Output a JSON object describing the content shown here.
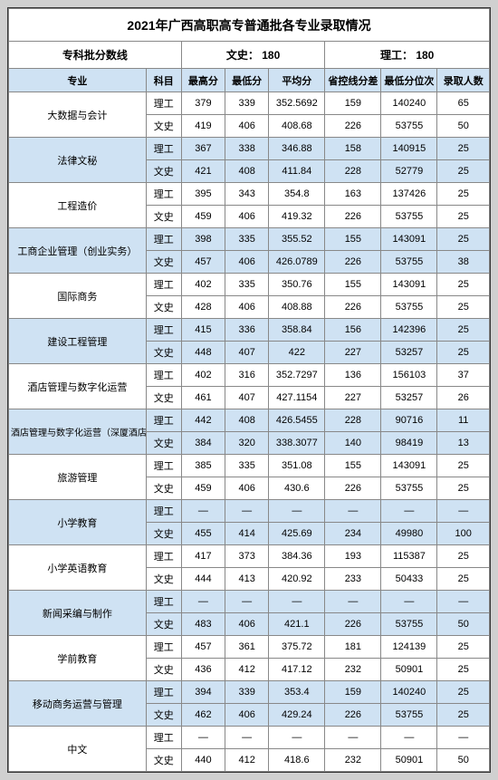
{
  "title": "2021年广西高职高专普通批各专业录取情况",
  "batch_label": "专科批分数线",
  "wenshi_label": "文史：",
  "wenshi_score": "180",
  "ligong_label": "理工：",
  "ligong_score": "180",
  "headers": [
    "专业",
    "科目",
    "最高分",
    "最低分",
    "平均分",
    "省控线分差",
    "最低分位次",
    "录取人数"
  ],
  "col_widths": [
    "132",
    "34",
    "42",
    "42",
    "54",
    "54",
    "54",
    "50"
  ],
  "majors": [
    {
      "name": "大数据与会计",
      "alt": false,
      "rows": [
        {
          "s": "理工",
          "hi": "379",
          "lo": "339",
          "avg": "352.5692",
          "diff": "159",
          "rank": "140240",
          "n": "65"
        },
        {
          "s": "文史",
          "hi": "419",
          "lo": "406",
          "avg": "408.68",
          "diff": "226",
          "rank": "53755",
          "n": "50"
        }
      ]
    },
    {
      "name": "法律文秘",
      "alt": true,
      "rows": [
        {
          "s": "理工",
          "hi": "367",
          "lo": "338",
          "avg": "346.88",
          "diff": "158",
          "rank": "140915",
          "n": "25"
        },
        {
          "s": "文史",
          "hi": "421",
          "lo": "408",
          "avg": "411.84",
          "diff": "228",
          "rank": "52779",
          "n": "25"
        }
      ]
    },
    {
      "name": "工程造价",
      "alt": false,
      "rows": [
        {
          "s": "理工",
          "hi": "395",
          "lo": "343",
          "avg": "354.8",
          "diff": "163",
          "rank": "137426",
          "n": "25"
        },
        {
          "s": "文史",
          "hi": "459",
          "lo": "406",
          "avg": "419.32",
          "diff": "226",
          "rank": "53755",
          "n": "25"
        }
      ]
    },
    {
      "name": "工商企业管理（创业实务）",
      "alt": true,
      "rows": [
        {
          "s": "理工",
          "hi": "398",
          "lo": "335",
          "avg": "355.52",
          "diff": "155",
          "rank": "143091",
          "n": "25"
        },
        {
          "s": "文史",
          "hi": "457",
          "lo": "406",
          "avg": "426.0789",
          "diff": "226",
          "rank": "53755",
          "n": "38"
        }
      ]
    },
    {
      "name": "国际商务",
      "alt": false,
      "rows": [
        {
          "s": "理工",
          "hi": "402",
          "lo": "335",
          "avg": "350.76",
          "diff": "155",
          "rank": "143091",
          "n": "25"
        },
        {
          "s": "文史",
          "hi": "428",
          "lo": "406",
          "avg": "408.88",
          "diff": "226",
          "rank": "53755",
          "n": "25"
        }
      ]
    },
    {
      "name": "建设工程管理",
      "alt": true,
      "rows": [
        {
          "s": "理工",
          "hi": "415",
          "lo": "336",
          "avg": "358.84",
          "diff": "156",
          "rank": "142396",
          "n": "25"
        },
        {
          "s": "文史",
          "hi": "448",
          "lo": "407",
          "avg": "422",
          "diff": "227",
          "rank": "53257",
          "n": "25"
        }
      ]
    },
    {
      "name": "酒店管理与数字化运营",
      "alt": false,
      "rows": [
        {
          "s": "理工",
          "hi": "402",
          "lo": "316",
          "avg": "352.7297",
          "diff": "136",
          "rank": "156103",
          "n": "37"
        },
        {
          "s": "文史",
          "hi": "461",
          "lo": "407",
          "avg": "427.1154",
          "diff": "227",
          "rank": "53257",
          "n": "26"
        }
      ]
    },
    {
      "name": "酒店管理与数字化运营（深厦酒店订单班）",
      "alt": true,
      "rows": [
        {
          "s": "理工",
          "hi": "442",
          "lo": "408",
          "avg": "426.5455",
          "diff": "228",
          "rank": "90716",
          "n": "11"
        },
        {
          "s": "文史",
          "hi": "384",
          "lo": "320",
          "avg": "338.3077",
          "diff": "140",
          "rank": "98419",
          "n": "13"
        }
      ]
    },
    {
      "name": "旅游管理",
      "alt": false,
      "rows": [
        {
          "s": "理工",
          "hi": "385",
          "lo": "335",
          "avg": "351.08",
          "diff": "155",
          "rank": "143091",
          "n": "25"
        },
        {
          "s": "文史",
          "hi": "459",
          "lo": "406",
          "avg": "430.6",
          "diff": "226",
          "rank": "53755",
          "n": "25"
        }
      ]
    },
    {
      "name": "小学教育",
      "alt": true,
      "rows": [
        {
          "s": "理工",
          "hi": "—",
          "lo": "—",
          "avg": "—",
          "diff": "—",
          "rank": "—",
          "n": "—"
        },
        {
          "s": "文史",
          "hi": "455",
          "lo": "414",
          "avg": "425.69",
          "diff": "234",
          "rank": "49980",
          "n": "100"
        }
      ]
    },
    {
      "name": "小学英语教育",
      "alt": false,
      "rows": [
        {
          "s": "理工",
          "hi": "417",
          "lo": "373",
          "avg": "384.36",
          "diff": "193",
          "rank": "115387",
          "n": "25"
        },
        {
          "s": "文史",
          "hi": "444",
          "lo": "413",
          "avg": "420.92",
          "diff": "233",
          "rank": "50433",
          "n": "25"
        }
      ]
    },
    {
      "name": "新闻采编与制作",
      "alt": true,
      "rows": [
        {
          "s": "理工",
          "hi": "—",
          "lo": "—",
          "avg": "—",
          "diff": "—",
          "rank": "—",
          "n": "—"
        },
        {
          "s": "文史",
          "hi": "483",
          "lo": "406",
          "avg": "421.1",
          "diff": "226",
          "rank": "53755",
          "n": "50"
        }
      ]
    },
    {
      "name": "学前教育",
      "alt": false,
      "rows": [
        {
          "s": "理工",
          "hi": "457",
          "lo": "361",
          "avg": "375.72",
          "diff": "181",
          "rank": "124139",
          "n": "25"
        },
        {
          "s": "文史",
          "hi": "436",
          "lo": "412",
          "avg": "417.12",
          "diff": "232",
          "rank": "50901",
          "n": "25"
        }
      ]
    },
    {
      "name": "移动商务运营与管理",
      "alt": true,
      "rows": [
        {
          "s": "理工",
          "hi": "394",
          "lo": "339",
          "avg": "353.4",
          "diff": "159",
          "rank": "140240",
          "n": "25"
        },
        {
          "s": "文史",
          "hi": "462",
          "lo": "406",
          "avg": "429.24",
          "diff": "226",
          "rank": "53755",
          "n": "25"
        }
      ]
    },
    {
      "name": "中文",
      "alt": false,
      "rows": [
        {
          "s": "理工",
          "hi": "—",
          "lo": "—",
          "avg": "—",
          "diff": "—",
          "rank": "—",
          "n": "—"
        },
        {
          "s": "文史",
          "hi": "440",
          "lo": "412",
          "avg": "418.6",
          "diff": "232",
          "rank": "50901",
          "n": "50"
        }
      ]
    }
  ]
}
